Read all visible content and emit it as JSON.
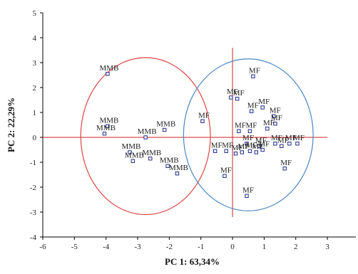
{
  "chart_data": {
    "type": "scatter",
    "xlabel": "PC 1: 63,34%",
    "ylabel": "PC 2: 22,29%",
    "xlim": [
      -6,
      3.9
    ],
    "ylim": [
      -4,
      5
    ],
    "x_ticks": [
      -6,
      -5,
      -4,
      -3,
      -2,
      -1,
      0,
      1,
      2,
      3
    ],
    "y_ticks": [
      -4,
      -3,
      -2,
      -1,
      0,
      1,
      2,
      3,
      4,
      5
    ],
    "grid": false,
    "legend": "none",
    "reference_lines": {
      "x": 0,
      "y": 0,
      "x_range": [
        -6.0,
        3.0
      ],
      "y_range": [
        -3.2,
        3.6
      ]
    },
    "colors": {
      "points": "#1e2a8a",
      "reference_lines": "#cc2222",
      "mmb_ellipse": "#dd4444",
      "mf_ellipse": "#4a86c6"
    },
    "ellipses": [
      {
        "group": "MMB",
        "center": [
          -2.75,
          0.05
        ],
        "rx": 2.05,
        "ry": 3.15
      },
      {
        "group": "MF",
        "center": [
          0.5,
          0.1
        ],
        "rx": 2.05,
        "ry": 3.05
      }
    ],
    "points": [
      {
        "label": "MMB",
        "x": -3.95,
        "y": 2.55
      },
      {
        "label": "MMB",
        "x": -3.95,
        "y": 0.45
      },
      {
        "label": "MMB",
        "x": -4.05,
        "y": 0.15
      },
      {
        "label": "MMB",
        "x": -2.75,
        "y": 0.0
      },
      {
        "label": "MMB",
        "x": -2.15,
        "y": 0.3
      },
      {
        "label": "MMB",
        "x": -3.25,
        "y": -0.6
      },
      {
        "label": "MMB",
        "x": -3.15,
        "y": -0.95
      },
      {
        "label": "MMB",
        "x": -2.6,
        "y": -0.85
      },
      {
        "label": "MMB",
        "x": -1.75,
        "y": -1.45
      },
      {
        "label": "MMB",
        "x": -2.05,
        "y": -1.15
      },
      {
        "label": "MF",
        "x": -0.95,
        "y": 0.65
      },
      {
        "label": "MF",
        "x": 0.65,
        "y": 2.45
      },
      {
        "label": "MF",
        "x": -0.05,
        "y": 1.6
      },
      {
        "label": "MF",
        "x": 0.15,
        "y": 1.55
      },
      {
        "label": "MF",
        "x": 0.6,
        "y": 1.05
      },
      {
        "label": "MF",
        "x": 0.95,
        "y": 1.2
      },
      {
        "label": "MF",
        "x": 1.3,
        "y": 0.85
      },
      {
        "label": "MF",
        "x": 1.35,
        "y": 0.55
      },
      {
        "label": "MF",
        "x": 1.1,
        "y": 0.35
      },
      {
        "label": "MF",
        "x": 0.55,
        "y": 0.25
      },
      {
        "label": "MF",
        "x": 0.2,
        "y": 0.25
      },
      {
        "label": "MF",
        "x": 0.45,
        "y": -0.25
      },
      {
        "label": "MF",
        "x": 0.85,
        "y": -0.35
      },
      {
        "label": "MF",
        "x": 1.35,
        "y": -0.25
      },
      {
        "label": "MF",
        "x": 1.8,
        "y": -0.25
      },
      {
        "label": "MF",
        "x": 2.05,
        "y": -0.25
      },
      {
        "label": "MF",
        "x": -0.55,
        "y": -0.55
      },
      {
        "label": "MF",
        "x": -0.2,
        "y": -0.55
      },
      {
        "label": "MF",
        "x": 0.1,
        "y": -0.65
      },
      {
        "label": "MF",
        "x": 0.3,
        "y": -0.6
      },
      {
        "label": "MF",
        "x": 0.55,
        "y": -0.55
      },
      {
        "label": "MF",
        "x": 0.75,
        "y": -0.6
      },
      {
        "label": "MF",
        "x": 0.95,
        "y": -0.5
      },
      {
        "label": "MF",
        "x": 1.55,
        "y": -0.35
      },
      {
        "label": "MF",
        "x": 1.65,
        "y": -1.25
      },
      {
        "label": "MF",
        "x": -0.25,
        "y": -1.55
      },
      {
        "label": "MF",
        "x": 0.45,
        "y": -2.35
      }
    ]
  }
}
